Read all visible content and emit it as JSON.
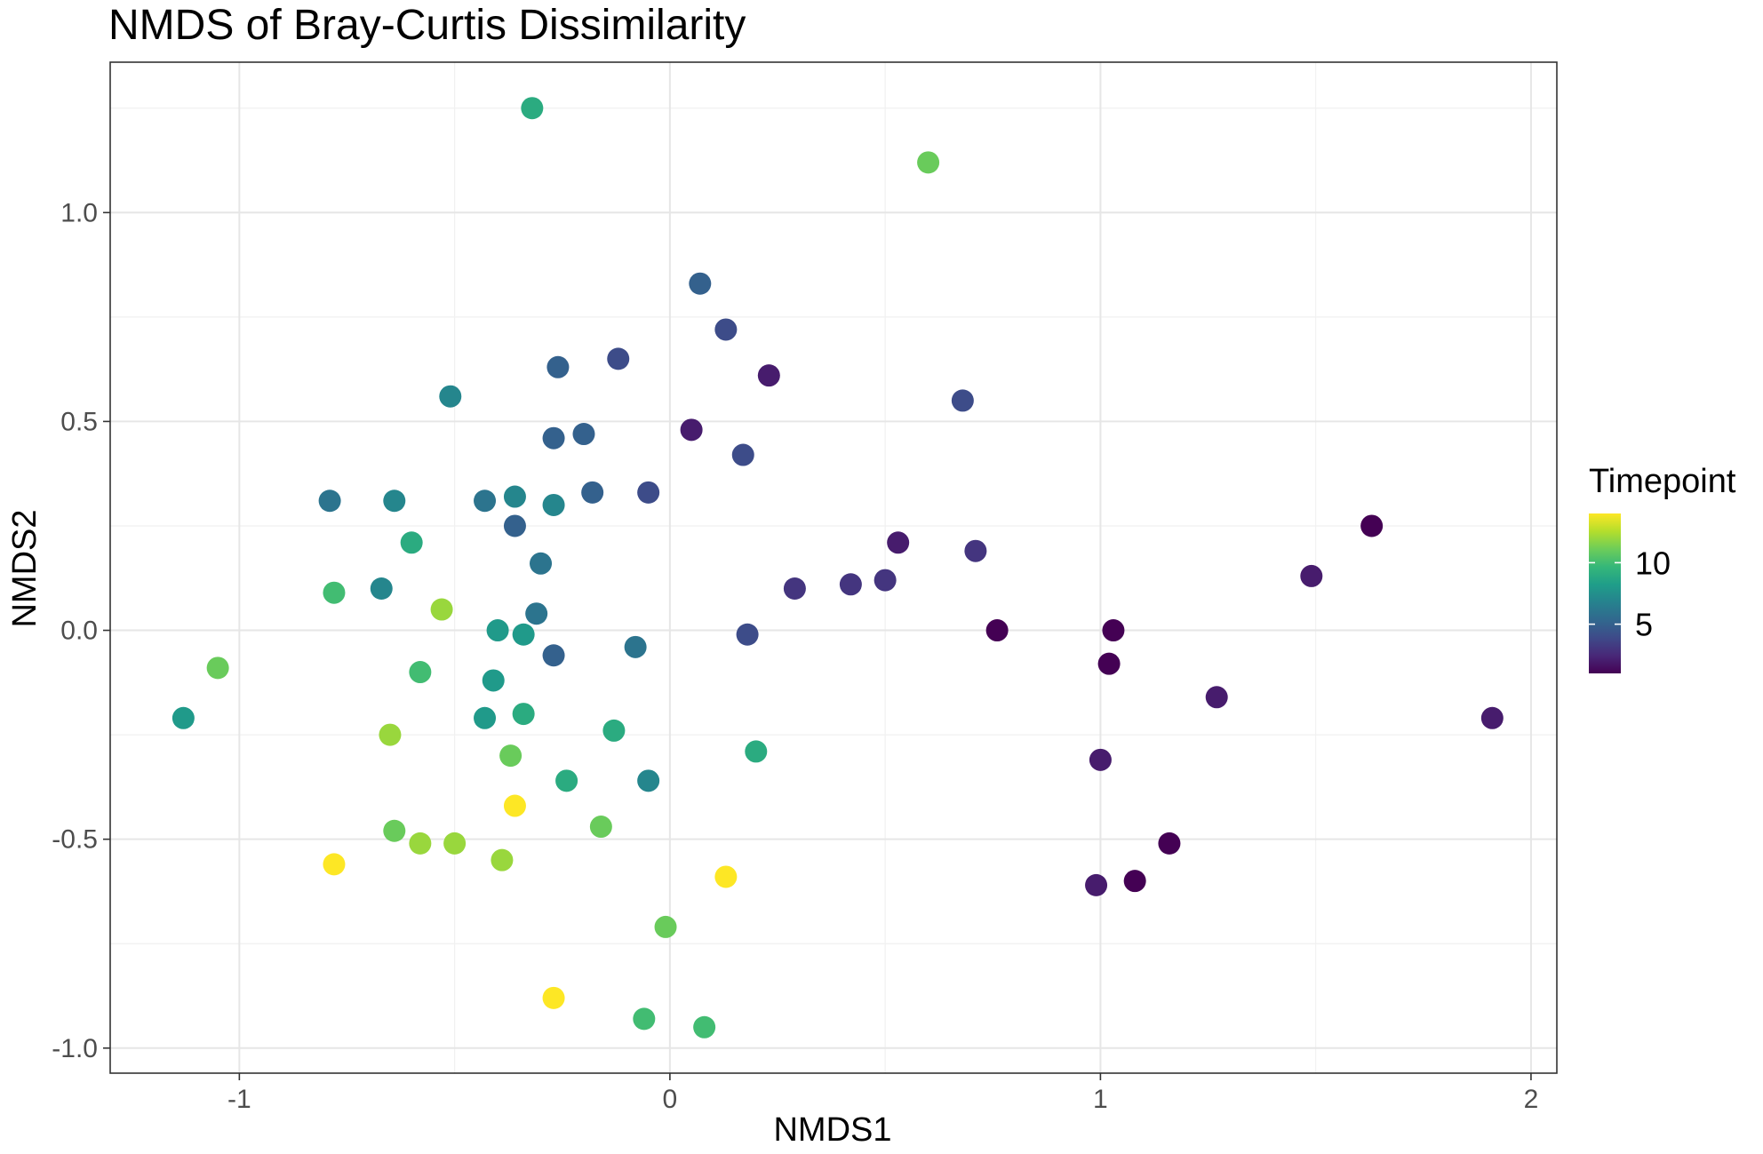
{
  "colors": {
    "background": "#ffffff",
    "panel_border": "#333333",
    "grid_major": "#e6e6e6",
    "grid_minor": "#f1f1f1",
    "viridis": [
      "#440154",
      "#482878",
      "#3E4A89",
      "#31688E",
      "#26828E",
      "#1F9E89",
      "#35B779",
      "#6DCD59",
      "#B4DE2C",
      "#FDE725"
    ]
  },
  "chart_data": {
    "type": "scatter",
    "title": "NMDS of Bray-Curtis Dissimilarity",
    "xlabel": "NMDS1",
    "ylabel": "NMDS2",
    "xlim": [
      -1.3,
      2.06
    ],
    "ylim": [
      -1.06,
      1.36
    ],
    "x_ticks": [
      -1,
      0,
      1,
      2
    ],
    "x_tick_labels": [
      "-1",
      "0",
      "1",
      "2"
    ],
    "y_ticks": [
      -1.0,
      -0.5,
      0.0,
      0.5,
      1.0
    ],
    "y_tick_labels": [
      "-1.0",
      "-0.5",
      "0.0",
      "0.5",
      "1.0"
    ],
    "grid": true,
    "legend": {
      "title": "Timepoint",
      "type": "colorbar",
      "placement": "right",
      "range": [
        1,
        14
      ],
      "breaks": [
        5,
        10
      ],
      "break_labels": [
        "5",
        "10"
      ]
    },
    "points": [
      {
        "x": -0.32,
        "y": 1.25,
        "t": 9
      },
      {
        "x": 0.6,
        "y": 1.12,
        "t": 11
      },
      {
        "x": 0.07,
        "y": 0.83,
        "t": 5
      },
      {
        "x": 0.13,
        "y": 0.72,
        "t": 4
      },
      {
        "x": -0.26,
        "y": 0.63,
        "t": 5
      },
      {
        "x": -0.12,
        "y": 0.65,
        "t": 4
      },
      {
        "x": 0.23,
        "y": 0.61,
        "t": 2
      },
      {
        "x": -0.51,
        "y": 0.56,
        "t": 7
      },
      {
        "x": 0.68,
        "y": 0.55,
        "t": 4
      },
      {
        "x": 0.05,
        "y": 0.48,
        "t": 2
      },
      {
        "x": -0.27,
        "y": 0.46,
        "t": 5
      },
      {
        "x": -0.2,
        "y": 0.47,
        "t": 5
      },
      {
        "x": 0.17,
        "y": 0.42,
        "t": 4
      },
      {
        "x": -0.79,
        "y": 0.31,
        "t": 6
      },
      {
        "x": -0.64,
        "y": 0.31,
        "t": 7
      },
      {
        "x": -0.43,
        "y": 0.31,
        "t": 6
      },
      {
        "x": -0.36,
        "y": 0.32,
        "t": 7
      },
      {
        "x": -0.27,
        "y": 0.3,
        "t": 7
      },
      {
        "x": -0.18,
        "y": 0.33,
        "t": 5
      },
      {
        "x": -0.05,
        "y": 0.33,
        "t": 4
      },
      {
        "x": -0.36,
        "y": 0.25,
        "t": 5
      },
      {
        "x": -0.6,
        "y": 0.21,
        "t": 9
      },
      {
        "x": 0.53,
        "y": 0.21,
        "t": 2
      },
      {
        "x": 0.71,
        "y": 0.19,
        "t": 3
      },
      {
        "x": 1.63,
        "y": 0.25,
        "t": 1
      },
      {
        "x": 1.49,
        "y": 0.13,
        "t": 2
      },
      {
        "x": -0.3,
        "y": 0.16,
        "t": 6
      },
      {
        "x": 0.29,
        "y": 0.1,
        "t": 3
      },
      {
        "x": 0.42,
        "y": 0.11,
        "t": 3
      },
      {
        "x": 0.5,
        "y": 0.12,
        "t": 3
      },
      {
        "x": -0.67,
        "y": 0.1,
        "t": 7
      },
      {
        "x": -0.78,
        "y": 0.09,
        "t": 10
      },
      {
        "x": -0.53,
        "y": 0.05,
        "t": 12
      },
      {
        "x": -0.31,
        "y": 0.04,
        "t": 6
      },
      {
        "x": -0.4,
        "y": 0.0,
        "t": 8
      },
      {
        "x": -0.34,
        "y": -0.01,
        "t": 8
      },
      {
        "x": 0.18,
        "y": -0.01,
        "t": 4
      },
      {
        "x": 0.76,
        "y": -0.0,
        "t": 1
      },
      {
        "x": 1.03,
        "y": -0.0,
        "t": 1
      },
      {
        "x": -0.27,
        "y": -0.06,
        "t": 5
      },
      {
        "x": -0.08,
        "y": -0.04,
        "t": 6
      },
      {
        "x": 1.02,
        "y": -0.08,
        "t": 1
      },
      {
        "x": -1.05,
        "y": -0.09,
        "t": 11
      },
      {
        "x": -0.58,
        "y": -0.1,
        "t": 10
      },
      {
        "x": -0.41,
        "y": -0.12,
        "t": 8
      },
      {
        "x": -1.13,
        "y": -0.21,
        "t": 8
      },
      {
        "x": -0.43,
        "y": -0.21,
        "t": 8
      },
      {
        "x": -0.34,
        "y": -0.2,
        "t": 9
      },
      {
        "x": -0.13,
        "y": -0.24,
        "t": 9
      },
      {
        "x": 1.27,
        "y": -0.16,
        "t": 2
      },
      {
        "x": 1.91,
        "y": -0.21,
        "t": 2
      },
      {
        "x": -0.65,
        "y": -0.25,
        "t": 12
      },
      {
        "x": -0.37,
        "y": -0.3,
        "t": 11
      },
      {
        "x": 0.2,
        "y": -0.29,
        "t": 9
      },
      {
        "x": 1.0,
        "y": -0.31,
        "t": 2
      },
      {
        "x": -0.24,
        "y": -0.36,
        "t": 9
      },
      {
        "x": -0.05,
        "y": -0.36,
        "t": 7
      },
      {
        "x": -0.36,
        "y": -0.42,
        "t": 14
      },
      {
        "x": -0.64,
        "y": -0.48,
        "t": 11
      },
      {
        "x": -0.58,
        "y": -0.51,
        "t": 12
      },
      {
        "x": -0.5,
        "y": -0.51,
        "t": 12
      },
      {
        "x": -0.16,
        "y": -0.47,
        "t": 11
      },
      {
        "x": 1.16,
        "y": -0.51,
        "t": 1
      },
      {
        "x": -0.78,
        "y": -0.56,
        "t": 14
      },
      {
        "x": -0.39,
        "y": -0.55,
        "t": 12
      },
      {
        "x": 0.13,
        "y": -0.59,
        "t": 14
      },
      {
        "x": 0.99,
        "y": -0.61,
        "t": 2
      },
      {
        "x": 1.08,
        "y": -0.6,
        "t": 1
      },
      {
        "x": -0.01,
        "y": -0.71,
        "t": 11
      },
      {
        "x": -0.27,
        "y": -0.88,
        "t": 14
      },
      {
        "x": -0.06,
        "y": -0.93,
        "t": 10
      },
      {
        "x": 0.08,
        "y": -0.95,
        "t": 10
      }
    ]
  }
}
